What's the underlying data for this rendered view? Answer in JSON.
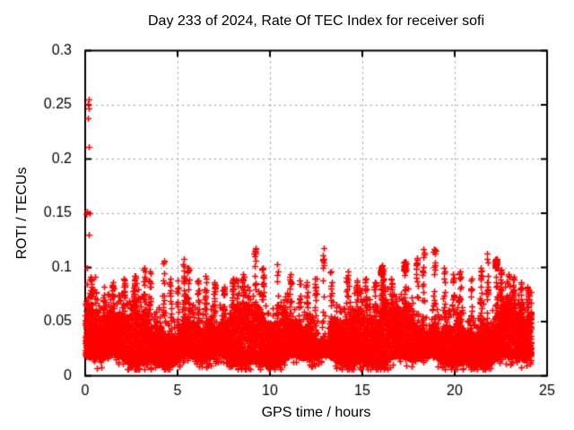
{
  "background": "#ffffff",
  "chart_data": {
    "type": "scatter",
    "title": "Day 233 of 2024, Rate Of TEC Index for receiver sofi",
    "xlabel": "GPS time / hours",
    "ylabel": "ROTI / TECUs",
    "xlim": [
      0,
      25
    ],
    "ylim": [
      0,
      0.3
    ],
    "xticks": [
      0,
      5,
      10,
      15,
      20,
      25
    ],
    "xtick_labels": [
      "0",
      "5",
      "10",
      "15",
      "20",
      "25"
    ],
    "yticks": [
      0,
      0.05,
      0.1,
      0.15,
      0.2,
      0.25,
      0.3
    ],
    "ytick_labels": [
      "0",
      "0.05",
      "0.1",
      "0.15",
      "0.2",
      "0.25",
      "0.3"
    ],
    "grid": {
      "show": true,
      "color": "#999999",
      "dash": [
        2,
        4
      ]
    },
    "border_color": "#000000",
    "tick_color": "#000000",
    "marker": "plus",
    "marker_color": "#ff0000",
    "marker_size": 7,
    "x_data_max": 24.15,
    "n_band_points": 11000,
    "seed": 2024233,
    "band": {
      "low_base": 0.014,
      "high_base": 0.052,
      "low_waves": [
        [
          1.1,
          0.7,
          0.004
        ],
        [
          3.3,
          2.5,
          0.003
        ]
      ],
      "high_waves": [
        [
          0.85,
          0.4,
          0.01
        ],
        [
          2.2,
          1.8,
          0.007
        ],
        [
          4.7,
          0.9,
          0.005
        ],
        [
          9.3,
          2.2,
          0.004
        ]
      ],
      "skew": 1.3,
      "fuzz_above_frac": 0.04,
      "fuzz_above_range": 0.018,
      "below_frac": 0.02,
      "y_floor": 0.006
    },
    "spikes": [
      [
        0.3,
        0.091
      ],
      [
        1.0,
        0.082
      ],
      [
        1.5,
        0.086
      ],
      [
        2.1,
        0.09
      ],
      [
        2.65,
        0.092
      ],
      [
        3.2,
        0.1
      ],
      [
        3.5,
        0.096
      ],
      [
        4.25,
        0.106
      ],
      [
        4.6,
        0.09
      ],
      [
        5.0,
        0.088
      ],
      [
        5.35,
        0.108
      ],
      [
        5.6,
        0.1
      ],
      [
        6.1,
        0.088
      ],
      [
        6.5,
        0.092
      ],
      [
        7.0,
        0.086
      ],
      [
        7.5,
        0.082
      ],
      [
        8.0,
        0.09
      ],
      [
        8.55,
        0.094
      ],
      [
        9.2,
        0.118
      ],
      [
        9.6,
        0.1
      ],
      [
        10.4,
        0.103
      ],
      [
        11.1,
        0.094
      ],
      [
        11.6,
        0.088
      ],
      [
        12.0,
        0.086
      ],
      [
        12.45,
        0.09
      ],
      [
        12.9,
        0.118
      ],
      [
        13.3,
        0.096
      ],
      [
        14.2,
        0.096
      ],
      [
        14.7,
        0.088
      ],
      [
        15.2,
        0.09
      ],
      [
        15.7,
        0.086
      ],
      [
        16.1,
        0.094
      ],
      [
        16.55,
        0.09
      ],
      [
        17.95,
        0.109
      ],
      [
        18.3,
        0.117
      ],
      [
        18.9,
        0.117
      ],
      [
        19.4,
        0.1
      ],
      [
        19.9,
        0.094
      ],
      [
        20.3,
        0.096
      ],
      [
        20.9,
        0.09
      ],
      [
        21.4,
        0.1
      ],
      [
        21.75,
        0.113
      ],
      [
        22.5,
        0.098
      ],
      [
        23.2,
        0.091
      ],
      [
        23.6,
        0.086
      ],
      [
        23.95,
        0.082
      ]
    ],
    "blobs": [
      [
        16.05,
        0.097
      ],
      [
        17.3,
        0.101
      ],
      [
        22.25,
        0.103
      ]
    ],
    "outliers": [
      [
        0.17,
        0.255
      ],
      [
        0.14,
        0.251
      ],
      [
        0.18,
        0.247
      ],
      [
        0.16,
        0.238
      ],
      [
        0.17,
        0.211
      ],
      [
        0.12,
        0.152
      ],
      [
        0.22,
        0.15
      ],
      [
        0.04,
        0.149
      ],
      [
        0.2,
        0.13
      ],
      [
        0.08,
        0.1
      ],
      [
        0.55,
        0.091
      ],
      [
        0.35,
        0.085
      ]
    ]
  }
}
